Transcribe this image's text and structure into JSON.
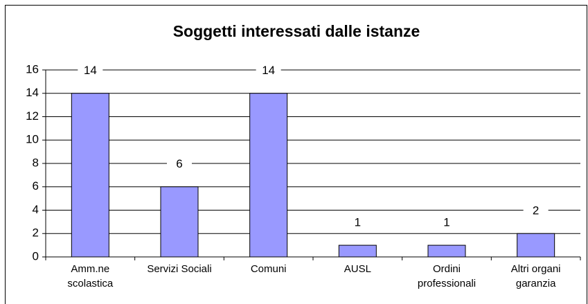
{
  "chart_data": {
    "type": "bar",
    "title": "Soggetti interessati dalle istanze",
    "categories": [
      "Amm.ne scolastica",
      "Servizi Sociali",
      "Comuni",
      "AUSL",
      "Ordini professionali",
      "Altri organi garanzia"
    ],
    "values": [
      14,
      6,
      14,
      1,
      1,
      2
    ],
    "color": "#9999ff",
    "ylim": [
      0,
      16
    ],
    "yticks": [
      0,
      2,
      4,
      6,
      8,
      10,
      12,
      14,
      16
    ],
    "grid": true
  }
}
